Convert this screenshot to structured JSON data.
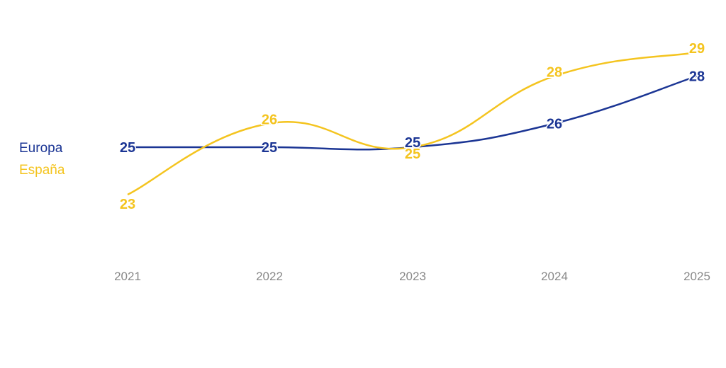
{
  "chart_data": {
    "type": "line",
    "title": "",
    "xlabel": "",
    "ylabel": "",
    "x": [
      "2021",
      "2022",
      "2023",
      "2024",
      "2025"
    ],
    "series": [
      {
        "name": "Europa",
        "values": [
          25,
          25,
          25,
          26,
          28
        ],
        "color": "#1b3594"
      },
      {
        "name": "España",
        "values": [
          23,
          26,
          25,
          28,
          29
        ],
        "color": "#f4c41f"
      }
    ],
    "ylim": [
      20,
      30
    ],
    "grid": false,
    "legend": "left",
    "data_labels": true
  }
}
